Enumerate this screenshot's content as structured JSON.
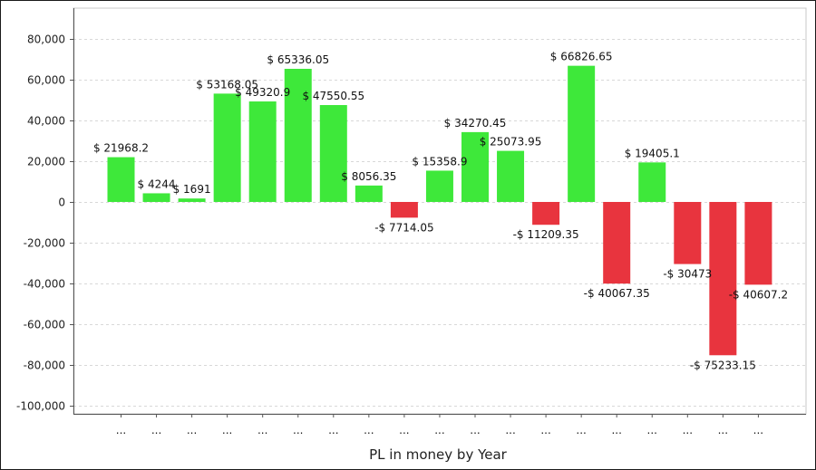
{
  "chart_data": {
    "type": "bar",
    "xlabel": "PL in money by Year",
    "ylabel": "",
    "ylim": [
      -105000,
      97000
    ],
    "yticks": [
      80000,
      60000,
      40000,
      20000,
      0,
      -20000,
      -40000,
      -60000,
      -80000,
      -100000
    ],
    "ytick_labels": [
      "80,000",
      "60,000",
      "40,000",
      "20,000",
      "0",
      "-20,000",
      "-40,000",
      "-60,000",
      "-80,000",
      "-100,000"
    ],
    "categories": [
      "...",
      "...",
      "...",
      "...",
      "...",
      "...",
      "...",
      "...",
      "...",
      "...",
      "...",
      "...",
      "...",
      "...",
      "...",
      "...",
      "...",
      "...",
      "..."
    ],
    "values": [
      21968.2,
      4244,
      1691,
      53168.05,
      49320.9,
      65336.05,
      47550.55,
      8056.35,
      -7714.05,
      15358.9,
      34270.45,
      25073.95,
      -11209.35,
      66826.65,
      -40067.35,
      19405.1,
      -30473,
      -75233.15,
      -40607.2
    ],
    "data_labels": [
      "$ 21968.2",
      "$ 4244",
      "$ 1691",
      "$ 53168.05",
      "$ 49320.9",
      "$ 65336.05",
      "$ 47550.55",
      "$ 8056.35",
      "-$ 7714.05",
      "$ 15358.9",
      "$ 34270.45",
      "$ 25073.95",
      "-$ 11209.35",
      "$ 66826.65",
      "-$ 40067.35",
      "$ 19405.1",
      "-$ 30473",
      "-$ 75233.15",
      "-$ 40607.2"
    ],
    "colors": {
      "positive": "#3ee83a",
      "negative": "#e8343e"
    },
    "grid": true
  }
}
